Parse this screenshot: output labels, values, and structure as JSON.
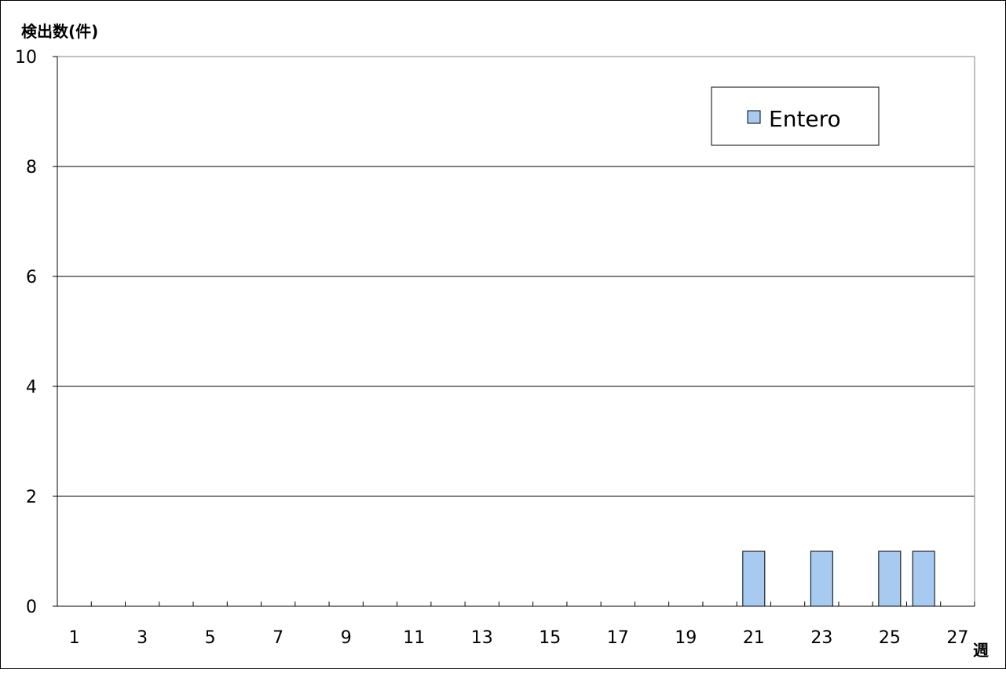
{
  "chart_data": {
    "type": "bar",
    "title": "",
    "ylabel": "検出数(件)",
    "xlabel": "週",
    "ylim": [
      0,
      10
    ],
    "yticks": [
      0,
      2,
      4,
      6,
      8,
      10
    ],
    "xlim": [
      0.5,
      27.5
    ],
    "xtick_labels": [
      1,
      3,
      5,
      7,
      9,
      11,
      13,
      15,
      17,
      19,
      21,
      23,
      25,
      27
    ],
    "grid": true,
    "legend_position": "top-right",
    "series": [
      {
        "name": "Entero",
        "color": "#a6caf0",
        "points": [
          {
            "x": 21,
            "y": 1
          },
          {
            "x": 23,
            "y": 1
          },
          {
            "x": 25,
            "y": 1
          },
          {
            "x": 26,
            "y": 1
          }
        ]
      }
    ]
  }
}
